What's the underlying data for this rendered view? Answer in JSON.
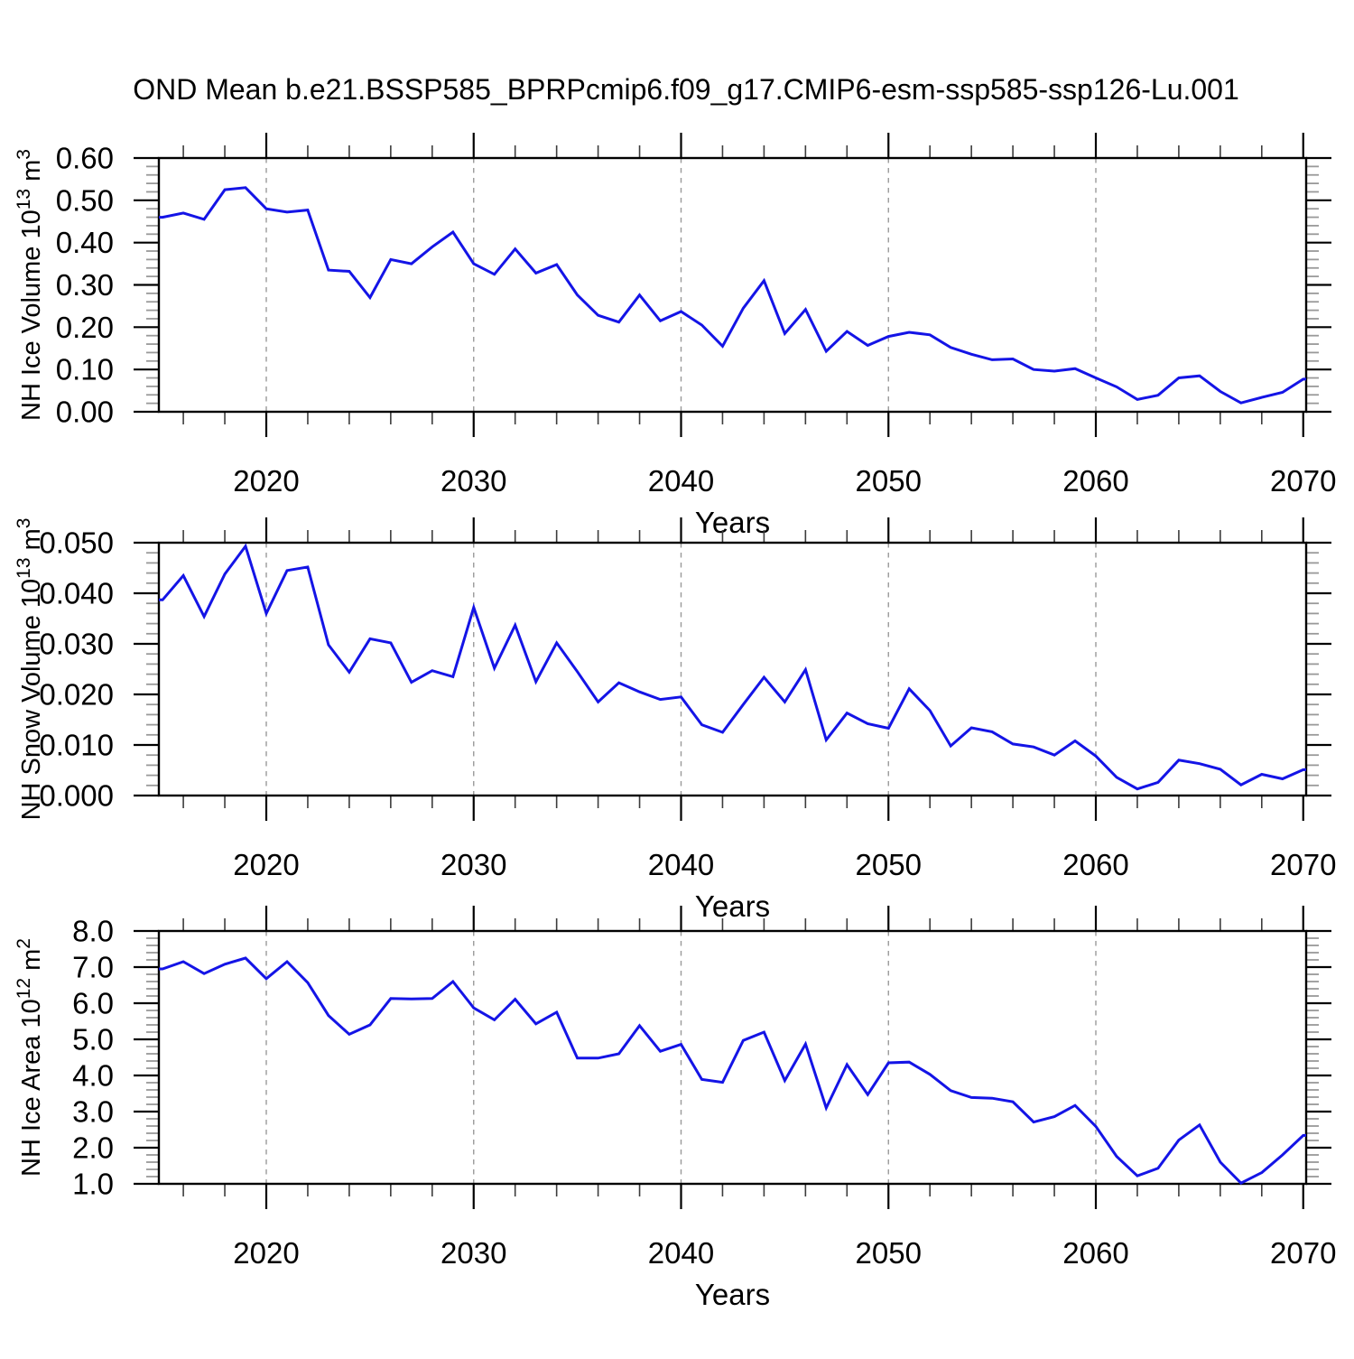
{
  "title": "OND Mean b.e21.BSSP585_BPRPcmip6.f09_g17.CMIP6-esm-ssp585-ssp126-Lu.001",
  "chart_data": {
    "type": "line",
    "title": "OND Mean b.e21.BSSP585_BPRPcmip6.f09_g17.CMIP6-esm-ssp585-ssp126-Lu.001",
    "xlabel": "Years",
    "xlim": [
      2014.8,
      2070.15
    ],
    "x_tick_labels": [
      "2020",
      "2030",
      "2040",
      "2050",
      "2060",
      "2070"
    ],
    "x_major_tick_years": [
      2020,
      2030,
      2040,
      2050,
      2060,
      2070
    ],
    "x_minor_tick_step_years": 2,
    "x_gridline_years": [
      2020,
      2030,
      2040,
      2050,
      2060
    ],
    "gridline_style": "dashed-vertical",
    "line_color": "#1414e6",
    "grid_color": "#9a9a9a",
    "frame_color": "#000000",
    "minor_tick_color": "#999999",
    "years": [
      2015,
      2016,
      2017,
      2018,
      2019,
      2020,
      2021,
      2022,
      2023,
      2024,
      2025,
      2026,
      2027,
      2028,
      2029,
      2030,
      2031,
      2032,
      2033,
      2034,
      2035,
      2036,
      2037,
      2038,
      2039,
      2040,
      2041,
      2042,
      2043,
      2044,
      2045,
      2046,
      2047,
      2048,
      2049,
      2050,
      2051,
      2052,
      2053,
      2054,
      2055,
      2056,
      2057,
      2058,
      2059,
      2060,
      2061,
      2062,
      2063,
      2064,
      2065,
      2066,
      2067,
      2068,
      2069,
      2070
    ],
    "panels": [
      {
        "name": "nh-ice-volume",
        "ylabel": "NH Ice Volume 10^13 m^3",
        "ylabel_parts": {
          "pre": "NH Ice Volume 10",
          "sup1": "13",
          "mid": " m",
          "sup2": "3"
        },
        "ylim": [
          0.0,
          0.6
        ],
        "y_major_ticks": [
          0.6,
          0.5,
          0.4,
          0.3,
          0.2,
          0.1,
          0.0
        ],
        "y_tick_labels": [
          "0.60",
          "0.50",
          "0.40",
          "0.30",
          "0.20",
          "0.10",
          "0.00"
        ],
        "y_minor_step": 0.02,
        "values": [
          0.46,
          0.47,
          0.455,
          0.525,
          0.53,
          0.48,
          0.472,
          0.477,
          0.335,
          0.332,
          0.27,
          0.36,
          0.35,
          0.39,
          0.425,
          0.35,
          0.325,
          0.385,
          0.328,
          0.348,
          0.276,
          0.228,
          0.212,
          0.276,
          0.215,
          0.237,
          0.205,
          0.155,
          0.245,
          0.31,
          0.185,
          0.242,
          0.143,
          0.19,
          0.157,
          0.178,
          0.188,
          0.182,
          0.152,
          0.136,
          0.123,
          0.125,
          0.1,
          0.096,
          0.102,
          0.08,
          0.059,
          0.029,
          0.039,
          0.08,
          0.085,
          0.048,
          0.021,
          0.034,
          0.046,
          0.077
        ]
      },
      {
        "name": "nh-snow-volume",
        "ylabel": "NH Snow Volume 10^13 m^3",
        "ylabel_parts": {
          "pre": "NH Snow Volume 10",
          "sup1": "13",
          "mid": " m",
          "sup2": "3"
        },
        "ylim": [
          0.0,
          0.05
        ],
        "y_major_ticks": [
          0.05,
          0.04,
          0.03,
          0.02,
          0.01,
          0.0
        ],
        "y_tick_labels": [
          "0.050",
          "0.040",
          "0.030",
          "0.020",
          "0.010",
          "0.000"
        ],
        "y_minor_step": 0.002,
        "values": [
          0.0387,
          0.0435,
          0.0354,
          0.0438,
          0.0493,
          0.036,
          0.0445,
          0.0452,
          0.0298,
          0.0244,
          0.031,
          0.0302,
          0.0224,
          0.0247,
          0.0235,
          0.0372,
          0.0252,
          0.0337,
          0.0225,
          0.0302,
          0.0245,
          0.0185,
          0.0223,
          0.0205,
          0.019,
          0.0195,
          0.014,
          0.0125,
          0.018,
          0.0234,
          0.0185,
          0.0249,
          0.011,
          0.0163,
          0.0142,
          0.0133,
          0.0211,
          0.0168,
          0.0098,
          0.0134,
          0.0126,
          0.0102,
          0.0096,
          0.008,
          0.0108,
          0.0078,
          0.0036,
          0.0013,
          0.0026,
          0.007,
          0.0063,
          0.0052,
          0.0021,
          0.0042,
          0.0033,
          0.0051
        ]
      },
      {
        "name": "nh-ice-area",
        "ylabel": "NH Ice Area 10^12 m^2",
        "ylabel_parts": {
          "pre": "NH Ice Area 10",
          "sup1": "12",
          "mid": " m",
          "sup2": "2"
        },
        "ylim": [
          1.0,
          8.0
        ],
        "y_major_ticks": [
          8.0,
          7.0,
          6.0,
          5.0,
          4.0,
          3.0,
          2.0,
          1.0
        ],
        "y_tick_labels": [
          "8.0",
          "7.0",
          "6.0",
          "5.0",
          "4.0",
          "3.0",
          "2.0",
          "1.0"
        ],
        "y_minor_step": 0.2,
        "values": [
          6.95,
          7.15,
          6.82,
          7.08,
          7.25,
          6.68,
          7.15,
          6.57,
          5.66,
          5.14,
          5.4,
          6.13,
          6.12,
          6.13,
          6.6,
          5.87,
          5.54,
          6.11,
          5.43,
          5.75,
          4.48,
          4.48,
          4.6,
          5.38,
          4.67,
          4.86,
          3.89,
          3.81,
          4.97,
          5.2,
          3.86,
          4.87,
          3.1,
          4.3,
          3.47,
          4.35,
          4.37,
          4.03,
          3.58,
          3.39,
          3.37,
          3.27,
          2.71,
          2.86,
          3.17,
          2.59,
          1.76,
          1.22,
          1.43,
          2.21,
          2.63,
          1.6,
          1.02,
          1.31,
          1.8,
          2.34
        ]
      }
    ]
  }
}
